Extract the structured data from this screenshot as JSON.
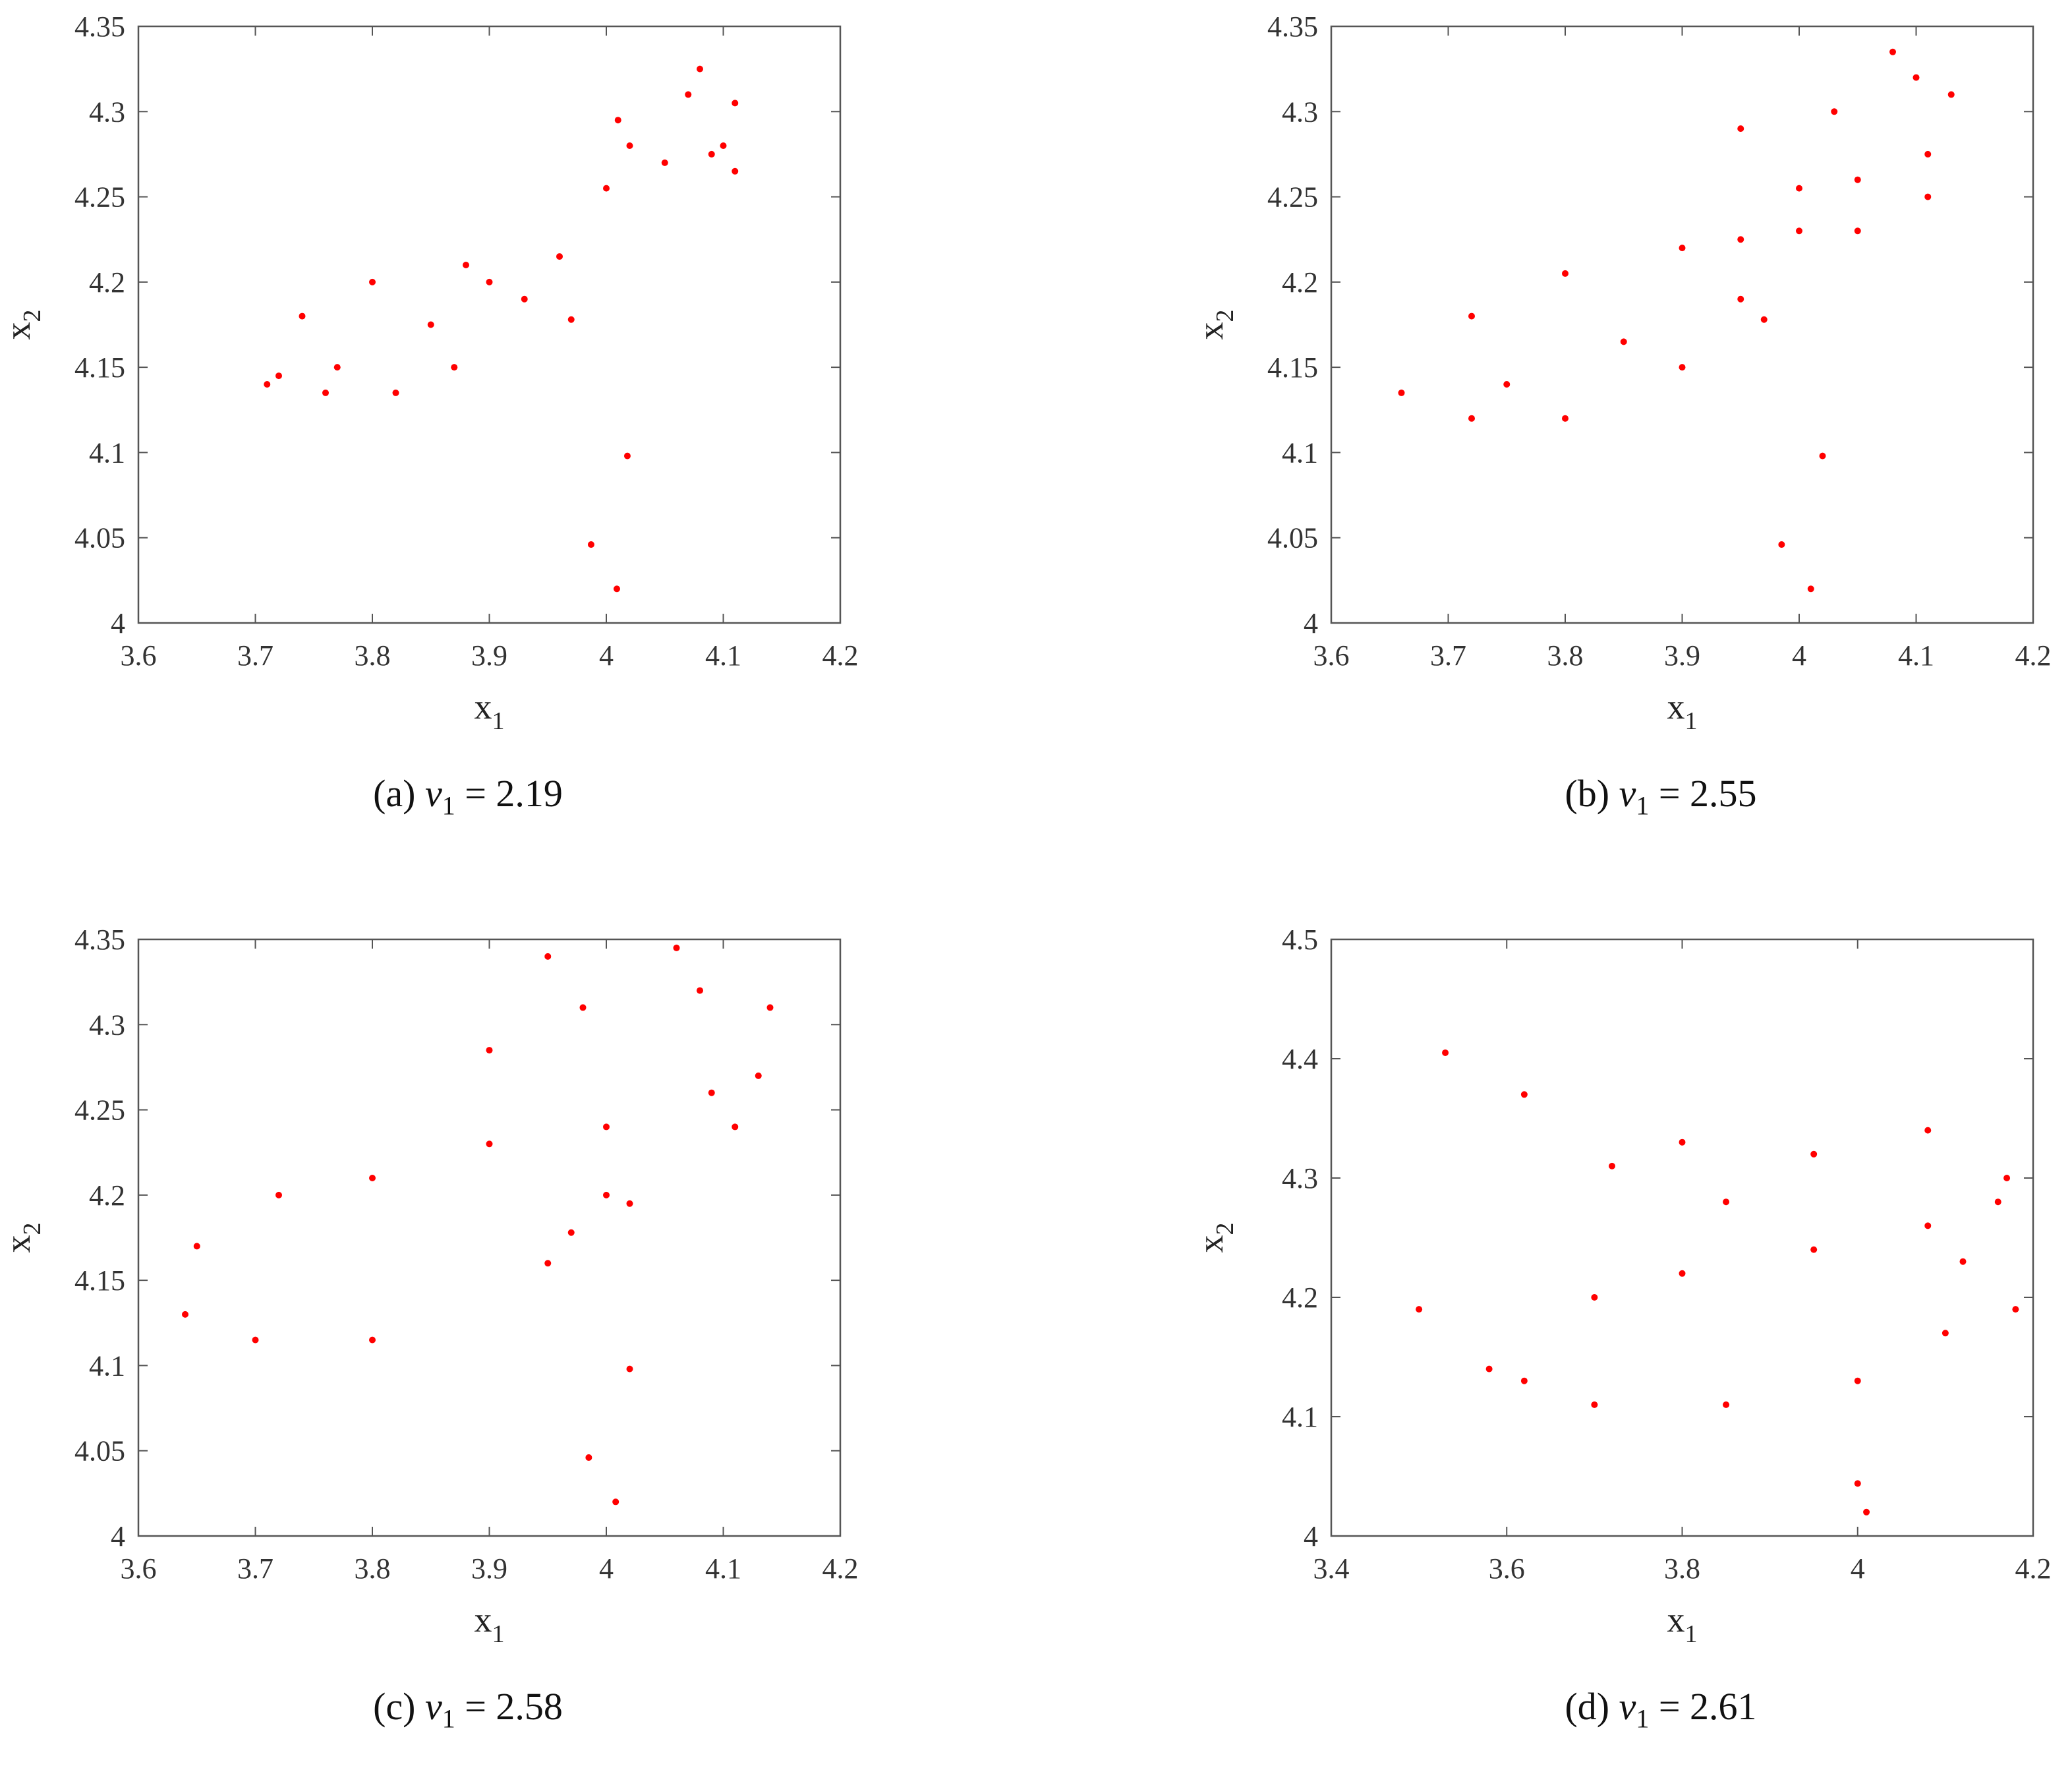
{
  "figure": {
    "panels": [
      {
        "caption": {
          "letter": "(a)",
          "var": "v",
          "sub": "1",
          "eq": "= 2.19"
        }
      },
      {
        "caption": {
          "letter": "(b)",
          "var": "v",
          "sub": "1",
          "eq": "= 2.55"
        }
      },
      {
        "caption": {
          "letter": "(c)",
          "var": "v",
          "sub": "1",
          "eq": "= 2.58"
        }
      },
      {
        "caption": {
          "letter": "(d)",
          "var": "v",
          "sub": "1",
          "eq": "= 2.61"
        }
      }
    ]
  },
  "colors": {
    "points": "#ff0000",
    "axes": "#555555",
    "text": "#333333"
  },
  "chart_data": [
    {
      "type": "scatter",
      "xlabel": "x",
      "xlabel_sub": "1",
      "ylabel": "x",
      "ylabel_sub": "2",
      "xlim": [
        3.6,
        4.2
      ],
      "ylim": [
        4.0,
        4.35
      ],
      "xticks": [
        3.6,
        3.7,
        3.8,
        3.9,
        4.0,
        4.1,
        4.2
      ],
      "xtick_labels": [
        "3.6",
        "3.7",
        "3.8",
        "3.9",
        "4",
        "4.1",
        "4.2"
      ],
      "yticks": [
        4.0,
        4.05,
        4.1,
        4.15,
        4.2,
        4.25,
        4.3,
        4.35
      ],
      "ytick_labels": [
        "4",
        "4.05",
        "4.1",
        "4.15",
        "4.2",
        "4.25",
        "4.3",
        "4.35"
      ],
      "grid": false,
      "series": [
        {
          "points": [
            [
              3.71,
              4.14
            ],
            [
              3.76,
              4.135
            ],
            [
              3.82,
              4.135
            ],
            [
              3.87,
              4.15
            ],
            [
              3.74,
              4.18
            ],
            [
              3.8,
              4.2
            ],
            [
              3.88,
              4.21
            ],
            [
              3.96,
              4.215
            ],
            [
              3.93,
              4.19
            ],
            [
              3.85,
              4.175
            ],
            [
              3.77,
              4.15
            ],
            [
              3.72,
              4.145
            ],
            [
              3.9,
              4.2
            ],
            [
              4.0,
              4.255
            ],
            [
              4.05,
              4.27
            ],
            [
              4.1,
              4.28
            ],
            [
              4.01,
              4.295
            ],
            [
              4.07,
              4.31
            ],
            [
              4.11,
              4.305
            ],
            [
              4.09,
              4.275
            ],
            [
              4.11,
              4.265
            ],
            [
              4.08,
              4.325
            ],
            [
              4.02,
              4.28
            ],
            [
              3.97,
              4.178
            ],
            [
              4.018,
              4.098
            ],
            [
              3.987,
              4.046
            ],
            [
              4.009,
              4.02
            ]
          ]
        }
      ]
    },
    {
      "type": "scatter",
      "xlabel": "x",
      "xlabel_sub": "1",
      "ylabel": "x",
      "ylabel_sub": "2",
      "xlim": [
        3.6,
        4.2
      ],
      "ylim": [
        4.0,
        4.35
      ],
      "xticks": [
        3.6,
        3.7,
        3.8,
        3.9,
        4.0,
        4.1,
        4.2
      ],
      "xtick_labels": [
        "3.6",
        "3.7",
        "3.8",
        "3.9",
        "4",
        "4.1",
        "4.2"
      ],
      "yticks": [
        4.0,
        4.05,
        4.1,
        4.15,
        4.2,
        4.25,
        4.3,
        4.35
      ],
      "ytick_labels": [
        "4",
        "4.05",
        "4.1",
        "4.15",
        "4.2",
        "4.25",
        "4.3",
        "4.35"
      ],
      "grid": false,
      "series": [
        {
          "points": [
            [
              3.66,
              4.135
            ],
            [
              3.72,
              4.12
            ],
            [
              3.8,
              4.12
            ],
            [
              3.9,
              4.15
            ],
            [
              3.72,
              4.18
            ],
            [
              3.8,
              4.205
            ],
            [
              3.9,
              4.22
            ],
            [
              4.0,
              4.23
            ],
            [
              4.05,
              4.23
            ],
            [
              3.95,
              4.19
            ],
            [
              3.85,
              4.165
            ],
            [
              3.75,
              4.14
            ],
            [
              3.95,
              4.225
            ],
            [
              4.05,
              4.26
            ],
            [
              4.11,
              4.275
            ],
            [
              3.95,
              4.29
            ],
            [
              4.03,
              4.3
            ],
            [
              4.1,
              4.32
            ],
            [
              4.13,
              4.31
            ],
            [
              4.11,
              4.25
            ],
            [
              4.08,
              4.335
            ],
            [
              4.0,
              4.255
            ],
            [
              3.97,
              4.178
            ],
            [
              4.02,
              4.098
            ],
            [
              3.985,
              4.046
            ],
            [
              4.01,
              4.02
            ]
          ]
        }
      ]
    },
    {
      "type": "scatter",
      "xlabel": "x",
      "xlabel_sub": "1",
      "ylabel": "x",
      "ylabel_sub": "2",
      "xlim": [
        3.6,
        4.2
      ],
      "ylim": [
        4.0,
        4.35
      ],
      "xticks": [
        3.6,
        3.7,
        3.8,
        3.9,
        4.0,
        4.1,
        4.2
      ],
      "xtick_labels": [
        "3.6",
        "3.7",
        "3.8",
        "3.9",
        "4",
        "4.1",
        "4.2"
      ],
      "yticks": [
        4.0,
        4.05,
        4.1,
        4.15,
        4.2,
        4.25,
        4.3,
        4.35
      ],
      "ytick_labels": [
        "4",
        "4.05",
        "4.1",
        "4.15",
        "4.2",
        "4.25",
        "4.3",
        "4.35"
      ],
      "grid": false,
      "series": [
        {
          "points": [
            [
              3.64,
              4.13
            ],
            [
              3.7,
              4.115
            ],
            [
              3.8,
              4.115
            ],
            [
              3.95,
              4.16
            ],
            [
              3.65,
              4.17
            ],
            [
              3.72,
              4.2
            ],
            [
              3.8,
              4.21
            ],
            [
              3.9,
              4.23
            ],
            [
              4.0,
              4.24
            ],
            [
              4.09,
              4.26
            ],
            [
              4.13,
              4.27
            ],
            [
              3.9,
              4.285
            ],
            [
              3.98,
              4.31
            ],
            [
              4.08,
              4.32
            ],
            [
              4.14,
              4.31
            ],
            [
              4.11,
              4.24
            ],
            [
              3.95,
              4.34
            ],
            [
              4.06,
              4.345
            ],
            [
              4.0,
              4.2
            ],
            [
              4.02,
              4.195
            ],
            [
              3.97,
              4.178
            ],
            [
              4.02,
              4.098
            ],
            [
              3.985,
              4.046
            ],
            [
              4.008,
              4.02
            ]
          ]
        }
      ]
    },
    {
      "type": "scatter",
      "xlabel": "x",
      "xlabel_sub": "1",
      "ylabel": "x",
      "ylabel_sub": "2",
      "xlim": [
        3.4,
        4.2
      ],
      "ylim": [
        4.0,
        4.5
      ],
      "xticks": [
        3.4,
        3.6,
        3.8,
        4.0,
        4.2
      ],
      "xtick_labels": [
        "3.4",
        "3.6",
        "3.8",
        "4",
        "4.2"
      ],
      "yticks": [
        4.0,
        4.1,
        4.2,
        4.3,
        4.4,
        4.5
      ],
      "ytick_labels": [
        "4",
        "4.1",
        "4.2",
        "4.3",
        "4.4",
        "4.5"
      ],
      "grid": false,
      "series": [
        {
          "points": [
            [
              3.62,
              4.13
            ],
            [
              3.7,
              4.11
            ],
            [
              3.85,
              4.11
            ],
            [
              4.0,
              4.13
            ],
            [
              4.1,
              4.17
            ],
            [
              3.5,
              4.19
            ],
            [
              3.58,
              4.14
            ],
            [
              3.7,
              4.2
            ],
            [
              3.8,
              4.22
            ],
            [
              3.95,
              4.24
            ],
            [
              4.08,
              4.26
            ],
            [
              4.16,
              4.28
            ],
            [
              3.85,
              4.28
            ],
            [
              3.95,
              4.32
            ],
            [
              4.08,
              4.34
            ],
            [
              4.17,
              4.3
            ],
            [
              3.53,
              4.405
            ],
            [
              3.62,
              4.37
            ],
            [
              3.72,
              4.31
            ],
            [
              3.8,
              4.33
            ],
            [
              4.12,
              4.23
            ],
            [
              4.18,
              4.19
            ],
            [
              4.0,
              4.044
            ],
            [
              4.01,
              4.02
            ]
          ]
        }
      ]
    }
  ]
}
